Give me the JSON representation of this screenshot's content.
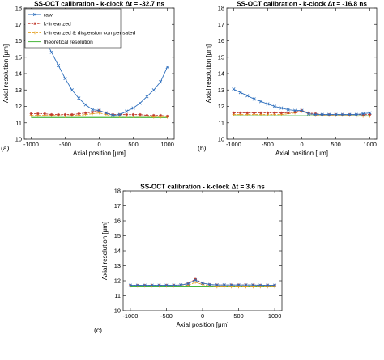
{
  "chart_data": [
    {
      "type": "line",
      "panel_label": "(a)",
      "title": "SS-OCT calibration - k-clock Δt = -32.7 ns",
      "xlabel": "Axial position [μm]",
      "ylabel": "Axial resolution [μm]",
      "xlim": [
        -1100,
        1100
      ],
      "ylim": [
        10,
        18
      ],
      "xticks": [
        "-1000",
        "-500",
        "0",
        "500",
        "1000"
      ],
      "yticks": [
        "10",
        "11",
        "12",
        "13",
        "14",
        "15",
        "16",
        "17",
        "18"
      ],
      "grid": false,
      "legend_position": "top-right",
      "series": [
        {
          "name": "raw",
          "color": "#2e6fbd",
          "marker": "x",
          "x": [
            -1000,
            -900,
            -800,
            -700,
            -600,
            -500,
            -400,
            -300,
            -200,
            -100,
            0,
            100,
            200,
            300,
            400,
            500,
            600,
            700,
            800,
            900,
            1000
          ],
          "y": [
            17.7,
            16.9,
            16.1,
            15.3,
            14.5,
            13.7,
            13.0,
            12.5,
            12.1,
            11.8,
            11.75,
            11.6,
            11.45,
            11.5,
            11.7,
            11.9,
            12.2,
            12.6,
            13.0,
            13.5,
            14.4
          ]
        },
        {
          "name": "k-linearized",
          "color": "#c0392b",
          "marker": "*",
          "x": [
            -1000,
            -900,
            -800,
            -700,
            -600,
            -500,
            -400,
            -300,
            -200,
            -100,
            0,
            100,
            200,
            300,
            400,
            500,
            600,
            700,
            800,
            900,
            1000
          ],
          "y": [
            11.55,
            11.55,
            11.55,
            11.5,
            11.5,
            11.5,
            11.5,
            11.55,
            11.6,
            11.65,
            11.75,
            11.6,
            11.5,
            11.5,
            11.5,
            11.5,
            11.5,
            11.45,
            11.45,
            11.45,
            11.4
          ]
        },
        {
          "name": "k-linearized & dispersion compensated",
          "color": "#e5a023",
          "marker": "+",
          "x": [
            -1000,
            -900,
            -800,
            -700,
            -600,
            -500,
            -400,
            -300,
            -200,
            -100,
            0,
            100,
            200,
            300,
            400,
            500,
            600,
            700,
            800,
            900,
            1000
          ],
          "y": [
            11.45,
            11.45,
            11.45,
            11.45,
            11.45,
            11.4,
            11.45,
            11.45,
            11.5,
            11.55,
            11.6,
            11.5,
            11.4,
            11.4,
            11.4,
            11.4,
            11.4,
            11.4,
            11.35,
            11.35,
            11.35
          ]
        },
        {
          "name": "theoretical resolution",
          "color": "#47b63a",
          "marker": "none",
          "x": [
            -1000,
            1000
          ],
          "y": [
            11.32,
            11.32
          ]
        }
      ]
    },
    {
      "type": "line",
      "panel_label": "(b)",
      "title": "SS-OCT calibration - k-clock Δt = -16.8 ns",
      "xlabel": "Axial position [μm]",
      "ylabel": "Axial resolution [μm]",
      "xlim": [
        -1100,
        1100
      ],
      "ylim": [
        10,
        18
      ],
      "xticks": [
        "-1000",
        "-500",
        "0",
        "500",
        "1000"
      ],
      "yticks": [
        "10",
        "11",
        "12",
        "13",
        "14",
        "15",
        "16",
        "17",
        "18"
      ],
      "grid": false,
      "series": [
        {
          "name": "raw",
          "color": "#2e6fbd",
          "marker": "x",
          "x": [
            -1000,
            -900,
            -800,
            -700,
            -600,
            -500,
            -400,
            -300,
            -200,
            -100,
            0,
            100,
            200,
            300,
            400,
            500,
            600,
            700,
            800,
            900,
            1000
          ],
          "y": [
            13.05,
            12.85,
            12.65,
            12.45,
            12.3,
            12.15,
            12.0,
            11.9,
            11.8,
            11.75,
            11.75,
            11.55,
            11.5,
            11.5,
            11.5,
            11.5,
            11.5,
            11.5,
            11.5,
            11.55,
            11.6
          ]
        },
        {
          "name": "k-linearized",
          "color": "#c0392b",
          "marker": "*",
          "x": [
            -1000,
            -900,
            -800,
            -700,
            -600,
            -500,
            -400,
            -300,
            -200,
            -100,
            0,
            100,
            200,
            300,
            400,
            500,
            600,
            700,
            800,
            900,
            1000
          ],
          "y": [
            11.6,
            11.6,
            11.6,
            11.6,
            11.6,
            11.6,
            11.6,
            11.6,
            11.6,
            11.65,
            11.75,
            11.6,
            11.55,
            11.5,
            11.5,
            11.5,
            11.5,
            11.5,
            11.5,
            11.5,
            11.5
          ]
        },
        {
          "name": "k-linearized & dispersion compensated",
          "color": "#e5a023",
          "marker": "+",
          "x": [
            -1000,
            -900,
            -800,
            -700,
            -600,
            -500,
            -400,
            -300,
            -200,
            -100,
            0,
            100,
            200,
            300,
            400,
            500,
            600,
            700,
            800,
            900,
            1000
          ],
          "y": [
            11.5,
            11.5,
            11.5,
            11.5,
            11.5,
            11.5,
            11.5,
            11.5,
            11.55,
            11.6,
            11.7,
            11.55,
            11.45,
            11.45,
            11.45,
            11.45,
            11.45,
            11.45,
            11.4,
            11.4,
            11.4
          ]
        },
        {
          "name": "theoretical resolution",
          "color": "#47b63a",
          "marker": "none",
          "x": [
            -1000,
            1000
          ],
          "y": [
            11.42,
            11.42
          ]
        }
      ]
    },
    {
      "type": "line",
      "panel_label": "(c)",
      "title": "SS-OCT calibration - k-clock Δt = 3.6 ns",
      "xlabel": "Axial position [μm]",
      "ylabel": "Axial resolution [μm]",
      "xlim": [
        -1100,
        1100
      ],
      "ylim": [
        10,
        18
      ],
      "xticks": [
        "-1000",
        "-500",
        "0",
        "500",
        "1000"
      ],
      "yticks": [
        "10",
        "11",
        "12",
        "13",
        "14",
        "15",
        "16",
        "17",
        "18"
      ],
      "grid": false,
      "series": [
        {
          "name": "raw",
          "color": "#2e6fbd",
          "marker": "x",
          "x": [
            -1000,
            -900,
            -800,
            -700,
            -600,
            -500,
            -400,
            -300,
            -200,
            -100,
            0,
            100,
            200,
            300,
            400,
            500,
            600,
            700,
            800,
            900,
            1000
          ],
          "y": [
            11.7,
            11.7,
            11.7,
            11.7,
            11.7,
            11.7,
            11.7,
            11.72,
            11.8,
            12.05,
            11.85,
            11.75,
            11.72,
            11.72,
            11.72,
            11.72,
            11.72,
            11.72,
            11.7,
            11.7,
            11.7
          ]
        },
        {
          "name": "k-linearized",
          "color": "#c0392b",
          "marker": "*",
          "x": [
            -1000,
            -900,
            -800,
            -700,
            -600,
            -500,
            -400,
            -300,
            -200,
            -100,
            0,
            100,
            200,
            300,
            400,
            500,
            600,
            700,
            800,
            900,
            1000
          ],
          "y": [
            11.7,
            11.7,
            11.7,
            11.7,
            11.7,
            11.7,
            11.7,
            11.72,
            11.82,
            12.1,
            11.85,
            11.75,
            11.72,
            11.72,
            11.72,
            11.72,
            11.72,
            11.72,
            11.7,
            11.7,
            11.7
          ]
        },
        {
          "name": "k-linearized & dispersion compensated",
          "color": "#e5a023",
          "marker": "+",
          "x": [
            -1000,
            -900,
            -800,
            -700,
            -600,
            -500,
            -400,
            -300,
            -200,
            -100,
            0,
            100,
            200,
            300,
            400,
            500,
            600,
            700,
            800,
            900,
            1000
          ],
          "y": [
            11.65,
            11.65,
            11.65,
            11.65,
            11.65,
            11.65,
            11.65,
            11.65,
            11.7,
            11.9,
            11.75,
            11.65,
            11.6,
            11.6,
            11.6,
            11.6,
            11.6,
            11.6,
            11.6,
            11.6,
            11.6
          ]
        },
        {
          "name": "theoretical resolution",
          "color": "#47b63a",
          "marker": "none",
          "x": [
            -1000,
            1000
          ],
          "y": [
            11.6,
            11.6
          ]
        }
      ]
    }
  ]
}
